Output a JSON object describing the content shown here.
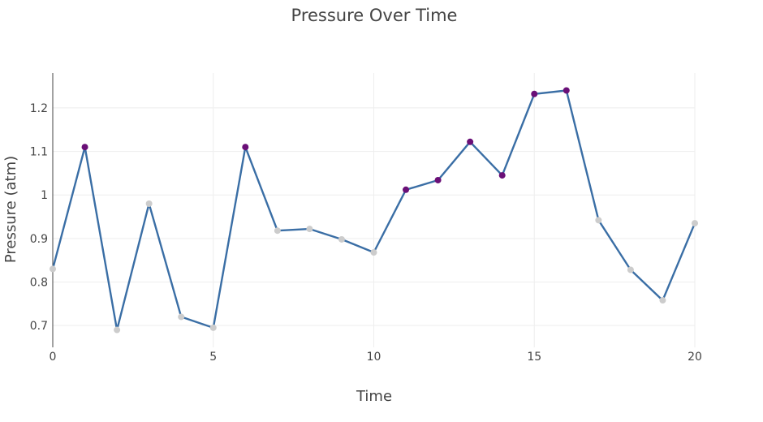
{
  "chart_data": {
    "type": "line",
    "title": "Pressure Over Time",
    "xlabel": "Time",
    "ylabel": "Pressure (atm)",
    "xlim": [
      0,
      20
    ],
    "ylim": [
      0.65,
      1.28
    ],
    "x_ticks": [
      0,
      5,
      10,
      15,
      20
    ],
    "y_ticks": [
      0.7,
      0.8,
      0.9,
      1.0,
      1.1,
      1.2
    ],
    "y_tick_labels": [
      "0.7",
      "0.8",
      "0.9",
      "1",
      "1.1",
      "1.2"
    ],
    "grid": true,
    "threshold": 1.0,
    "series": [
      {
        "x": [
          0,
          1,
          2,
          3,
          4,
          5,
          6,
          7,
          8,
          9,
          10,
          11,
          12,
          13,
          14,
          15,
          16,
          17,
          18,
          19,
          20
        ],
        "values": [
          0.83,
          1.11,
          0.69,
          0.98,
          0.72,
          0.695,
          1.11,
          0.918,
          0.922,
          0.898,
          0.868,
          1.012,
          1.034,
          1.122,
          1.045,
          1.232,
          1.24,
          0.942,
          0.828,
          0.758,
          0.935
        ],
        "line_color": "#3a6ea5",
        "marker_above_color": "#6a0f77",
        "marker_below_color": "#cccccc"
      }
    ]
  }
}
